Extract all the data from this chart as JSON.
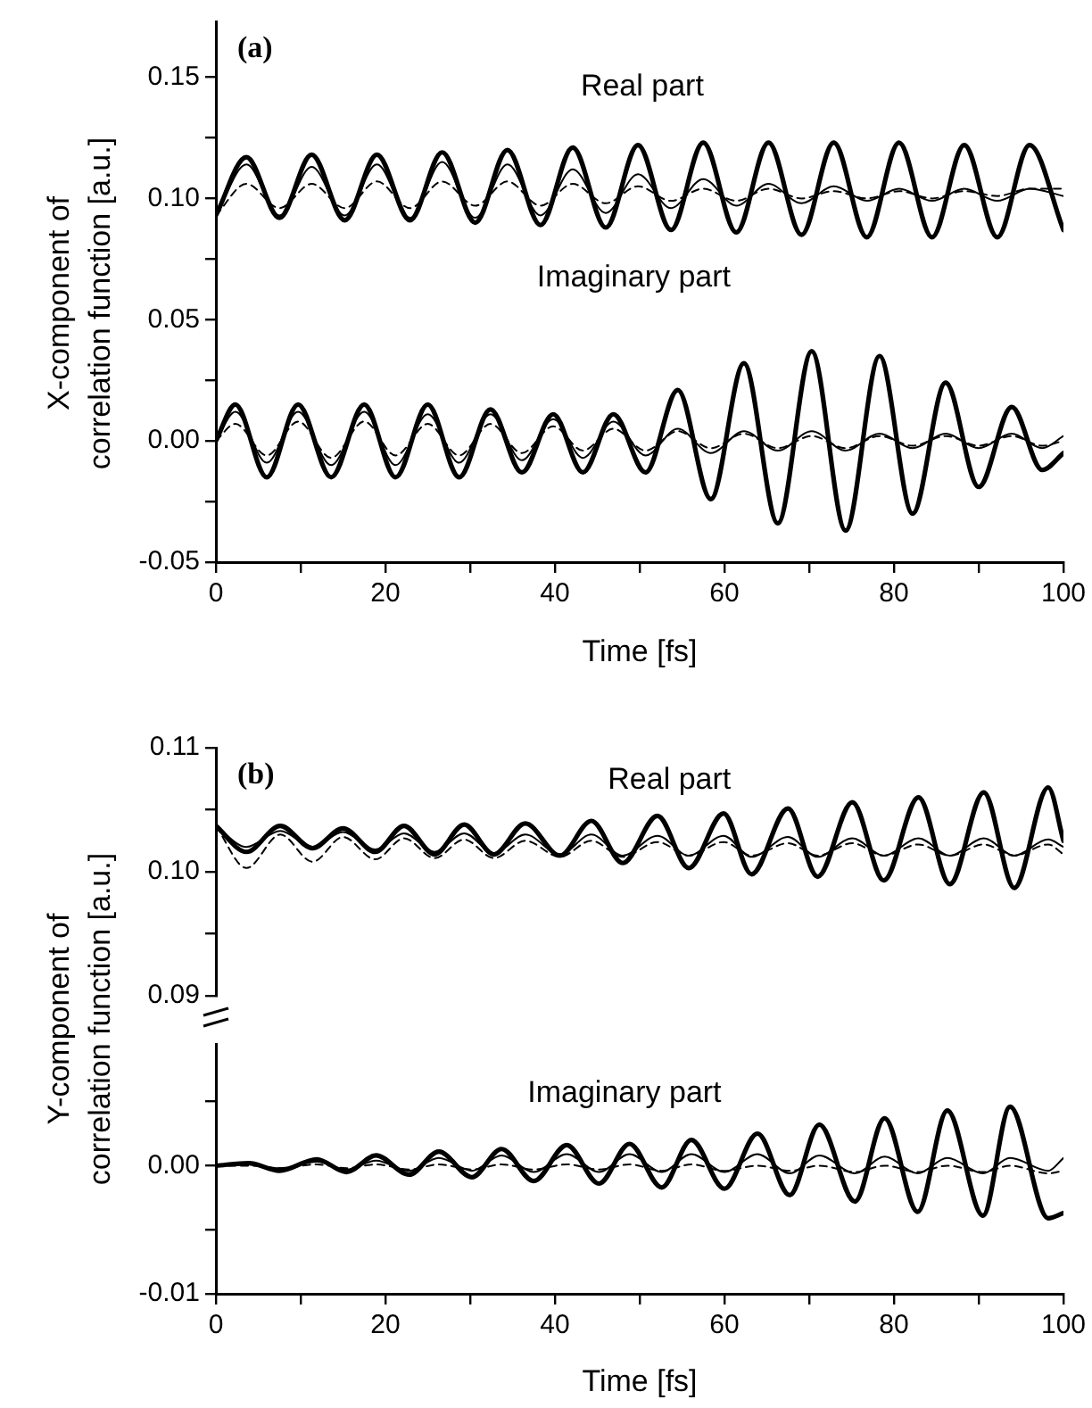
{
  "chart_data": [
    {
      "type": "line",
      "xlabel": "Time [fs]",
      "ylabel": "X-component of correlation function [a.u.]",
      "annotations": [
        "(a)",
        "Real part",
        "Imaginary part"
      ],
      "xlim": [
        0,
        100
      ],
      "ylim": [
        -0.05,
        0.173
      ],
      "xticks": [
        0,
        {
          "value": 10,
          "label": null
        },
        20,
        {
          "value": 30,
          "label": null
        },
        40,
        {
          "value": 50,
          "label": null
        },
        60,
        {
          "value": 70,
          "label": null
        },
        80,
        {
          "value": 90,
          "label": null
        },
        100
      ],
      "yticks": [
        {
          "value": -0.05,
          "label": "-0.05"
        },
        {
          "value": -0.025,
          "label": null
        },
        {
          "value": 0,
          "label": "0.00"
        },
        {
          "value": 0.025,
          "label": null
        },
        {
          "value": 0.05,
          "label": "0.05"
        },
        {
          "value": 0.075,
          "label": null
        },
        {
          "value": 0.1,
          "label": "0.10"
        },
        {
          "value": 0.125,
          "label": null
        },
        {
          "value": 0.15,
          "label": "0.15"
        }
      ],
      "series": [
        {
          "color": "#000000",
          "line_style": "solid",
          "x": [
            0,
            3.6,
            7.5,
            11.3,
            15.2,
            19,
            22.9,
            26.7,
            30.6,
            34.4,
            38.3,
            42.1,
            46,
            49.8,
            53.7,
            57.5,
            61.4,
            65.2,
            69.1,
            72.9,
            76.8,
            80.6,
            84.5,
            88.3,
            92.2,
            96,
            100
          ],
          "values": [
            0.093,
            0.117,
            0.092,
            0.118,
            0.091,
            0.118,
            0.091,
            0.119,
            0.09,
            0.12,
            0.089,
            0.121,
            0.088,
            0.122,
            0.087,
            0.123,
            0.086,
            0.123,
            0.085,
            0.123,
            0.084,
            0.123,
            0.084,
            0.122,
            0.084,
            0.122,
            0.087
          ]
        },
        {
          "color": "#000000",
          "line_style": "solid",
          "x": [
            0,
            3.6,
            7.5,
            11.3,
            15.2,
            19,
            22.9,
            26.7,
            30.6,
            34.4,
            38.3,
            42.1,
            46,
            49.8,
            53.7,
            57.5,
            61.4,
            65.2,
            69.1,
            72.9,
            76.8,
            80.6,
            84.5,
            88.3,
            92.2,
            96,
            100
          ],
          "values": [
            0.093,
            0.114,
            0.093,
            0.113,
            0.093,
            0.114,
            0.092,
            0.115,
            0.092,
            0.114,
            0.093,
            0.112,
            0.094,
            0.11,
            0.096,
            0.108,
            0.097,
            0.106,
            0.098,
            0.105,
            0.099,
            0.104,
            0.099,
            0.104,
            0.099,
            0.104,
            0.101
          ]
        },
        {
          "color": "#000000",
          "line_style": "dashed",
          "x": [
            0,
            3.6,
            7.5,
            11.3,
            15.2,
            19,
            22.9,
            26.7,
            30.6,
            34.4,
            38.3,
            42.1,
            46,
            49.8,
            53.7,
            57.5,
            61.4,
            65.2,
            69.1,
            72.9,
            76.8,
            80.6,
            84.5,
            88.3,
            92.2,
            96,
            100
          ],
          "values": [
            0.093,
            0.106,
            0.096,
            0.106,
            0.096,
            0.107,
            0.096,
            0.107,
            0.097,
            0.107,
            0.097,
            0.106,
            0.098,
            0.105,
            0.099,
            0.104,
            0.099,
            0.104,
            0.1,
            0.103,
            0.1,
            0.103,
            0.1,
            0.103,
            0.101,
            0.104,
            0.104
          ]
        },
        {
          "color": "#000000",
          "line_style": "solid",
          "x": [
            0,
            2.3,
            6,
            9.7,
            13.6,
            17.5,
            21.2,
            25,
            28.7,
            32.4,
            36.1,
            39.8,
            43.3,
            46.9,
            50.7,
            54.5,
            58.4,
            62.3,
            66.3,
            70.3,
            74.3,
            78.3,
            82.2,
            86.1,
            90,
            93.9,
            97.5,
            100
          ],
          "values": [
            0,
            0.015,
            -0.015,
            0.015,
            -0.015,
            0.015,
            -0.015,
            0.015,
            -0.015,
            0.013,
            -0.013,
            0.011,
            -0.013,
            0.011,
            -0.013,
            0.021,
            -0.024,
            0.032,
            -0.034,
            0.037,
            -0.037,
            0.035,
            -0.03,
            0.024,
            -0.019,
            0.014,
            -0.012,
            -0.005
          ]
        },
        {
          "color": "#000000",
          "line_style": "solid",
          "x": [
            0,
            2.3,
            6,
            9.7,
            13.6,
            17.5,
            21.2,
            25,
            28.7,
            32.4,
            36.1,
            39.8,
            43.3,
            46.9,
            50.7,
            54.5,
            58.4,
            62.3,
            66.3,
            70.3,
            74.3,
            78.3,
            82.2,
            86.1,
            90,
            93.9,
            97.5,
            100
          ],
          "values": [
            0,
            0.012,
            -0.009,
            0.012,
            -0.01,
            0.012,
            -0.01,
            0.011,
            -0.009,
            0.011,
            -0.008,
            0.009,
            -0.007,
            0.008,
            -0.006,
            0.005,
            -0.005,
            0.004,
            -0.004,
            0.004,
            -0.004,
            0.003,
            -0.003,
            0.003,
            -0.003,
            0.003,
            -0.003,
            0.002
          ]
        },
        {
          "color": "#000000",
          "line_style": "dashed",
          "x": [
            0,
            2.3,
            6,
            9.7,
            13.6,
            17.5,
            21.2,
            25,
            28.7,
            32.4,
            36.1,
            39.8,
            43.3,
            46.9,
            50.7,
            54.5,
            58.4,
            62.3,
            66.3,
            70.3,
            74.3,
            78.3,
            82.2,
            86.1,
            90,
            93.9,
            97.5,
            100
          ],
          "values": [
            0,
            0.007,
            -0.006,
            0.008,
            -0.007,
            0.008,
            -0.006,
            0.007,
            -0.006,
            0.007,
            -0.005,
            0.006,
            -0.004,
            0.005,
            -0.004,
            0.004,
            -0.003,
            0.003,
            -0.003,
            0.002,
            -0.003,
            0.002,
            -0.002,
            0.002,
            -0.002,
            0.002,
            -0.002,
            0
          ]
        }
      ]
    },
    {
      "type": "line",
      "ylabel": "Y-component of correlation function [a.u.]",
      "annotations": [
        "(b)",
        "Real part"
      ],
      "xlim": [
        0,
        100
      ],
      "ylim": [
        0.09,
        0.11
      ],
      "tick_labels": "y",
      "yticks": [
        {
          "value": 0.09,
          "label": "0.09"
        },
        {
          "value": 0.095,
          "label": null
        },
        {
          "value": 0.1,
          "label": "0.10"
        },
        {
          "value": 0.105,
          "label": null
        },
        {
          "value": 0.11,
          "label": "0.11"
        }
      ],
      "series": [
        {
          "color": "#000000",
          "line_style": "solid",
          "x": [
            0,
            3.6,
            7.6,
            11.4,
            15,
            18.8,
            22.2,
            25.8,
            29.3,
            32.8,
            36.5,
            40.6,
            44.3,
            48,
            52.1,
            55.8,
            59.9,
            63.2,
            67.5,
            71,
            75.1,
            78.8,
            82.9,
            86.6,
            90.6,
            94.2,
            98.2,
            100
          ],
          "values": [
            0.1037,
            0.1016,
            0.1037,
            0.1019,
            0.1035,
            0.1016,
            0.1037,
            0.1014,
            0.1038,
            0.1014,
            0.1039,
            0.1013,
            0.1041,
            0.1007,
            0.1045,
            0.1003,
            0.1047,
            0.0998,
            0.1051,
            0.0996,
            0.1056,
            0.0993,
            0.106,
            0.099,
            0.1064,
            0.0987,
            0.1068,
            0.1025
          ]
        },
        {
          "color": "#000000",
          "line_style": "solid",
          "x": [
            0,
            3.6,
            7.6,
            11.4,
            15,
            18.8,
            22.2,
            25.8,
            29.3,
            32.8,
            36.5,
            40.6,
            44.3,
            48,
            52.1,
            55.8,
            59.9,
            63.2,
            67.5,
            71,
            75.1,
            78.8,
            82.9,
            86.6,
            90.6,
            94.2,
            98.2,
            100
          ],
          "values": [
            0.1037,
            0.102,
            0.1033,
            0.102,
            0.1032,
            0.1018,
            0.1031,
            0.1016,
            0.1031,
            0.1015,
            0.103,
            0.1014,
            0.103,
            0.1013,
            0.1029,
            0.1013,
            0.1029,
            0.1012,
            0.1028,
            0.1012,
            0.1027,
            0.1013,
            0.1027,
            0.1013,
            0.1027,
            0.1013,
            0.1026,
            0.102
          ]
        },
        {
          "color": "#000000",
          "line_style": "dashed",
          "x": [
            0,
            3.6,
            7.6,
            11.4,
            15,
            18.8,
            22.2,
            25.8,
            29.3,
            32.8,
            36.5,
            40.6,
            44.3,
            48,
            52.1,
            55.8,
            59.9,
            63.2,
            67.5,
            71,
            75.1,
            78.8,
            82.9,
            86.6,
            90.6,
            94.2,
            98.2,
            100
          ],
          "values": [
            0.1037,
            0.1003,
            0.103,
            0.1008,
            0.1028,
            0.101,
            0.1027,
            0.1011,
            0.1026,
            0.1011,
            0.1025,
            0.1012,
            0.1025,
            0.1012,
            0.1024,
            0.1013,
            0.1024,
            0.1013,
            0.1023,
            0.1013,
            0.1023,
            0.1013,
            0.1022,
            0.1013,
            0.1022,
            0.1013,
            0.1022,
            0.1014
          ]
        }
      ]
    },
    {
      "type": "line",
      "xlabel": "Time [fs]",
      "annotations": [
        "Imaginary part"
      ],
      "xlim": [
        0,
        100
      ],
      "ylim": [
        -0.01,
        0.0095
      ],
      "xticks": [
        0,
        {
          "value": 10,
          "label": null
        },
        20,
        {
          "value": 30,
          "label": null
        },
        40,
        {
          "value": 50,
          "label": null
        },
        60,
        {
          "value": 70,
          "label": null
        },
        80,
        {
          "value": 90,
          "label": null
        },
        100
      ],
      "yticks": [
        {
          "value": -0.01,
          "label": "-0.01"
        },
        {
          "value": -0.005,
          "label": null
        },
        {
          "value": 0,
          "label": "0.00"
        },
        {
          "value": 0.005,
          "label": null
        }
      ],
      "series": [
        {
          "color": "#000000",
          "line_style": "solid",
          "x": [
            0,
            3.9,
            7.5,
            11.9,
            15.4,
            18.9,
            22.8,
            26.3,
            30.2,
            33.7,
            37.5,
            41.4,
            45.2,
            48.8,
            52.6,
            56.1,
            60,
            63.9,
            67.7,
            71.2,
            75.4,
            78.9,
            82.8,
            86.3,
            90.5,
            93.7,
            98.2,
            100
          ],
          "values": [
            0,
            0.0002,
            -0.0004,
            0.0005,
            -0.0005,
            0.0008,
            -0.0007,
            0.0011,
            -0.0009,
            0.0013,
            -0.0012,
            0.0016,
            -0.0014,
            0.0017,
            -0.0017,
            0.002,
            -0.0018,
            0.0025,
            -0.0023,
            0.0032,
            -0.0028,
            0.0037,
            -0.0036,
            0.0043,
            -0.0039,
            0.0046,
            -0.0041,
            -0.0037
          ]
        },
        {
          "color": "#000000",
          "line_style": "solid",
          "x": [
            0,
            3.9,
            7.5,
            11.9,
            15.4,
            18.9,
            22.8,
            26.3,
            30.2,
            33.7,
            37.5,
            41.4,
            45.2,
            48.8,
            52.6,
            56.1,
            60,
            63.9,
            67.7,
            71.2,
            75.4,
            78.9,
            82.8,
            86.3,
            90.5,
            93.7,
            98.2,
            100
          ],
          "values": [
            0,
            0.0001,
            -0.0002,
            0.0003,
            -0.0003,
            0.0004,
            -0.0004,
            0.0006,
            -0.0004,
            0.0008,
            -0.0005,
            0.0009,
            -0.0005,
            0.0009,
            -0.0005,
            0.0009,
            -0.0005,
            0.0009,
            -0.0006,
            0.0008,
            -0.0006,
            0.0007,
            -0.0006,
            0.0006,
            -0.0006,
            0.0006,
            -0.0004,
            0.0006
          ]
        },
        {
          "color": "#000000",
          "line_style": "dashed",
          "x": [
            0,
            3.9,
            7.5,
            11.9,
            15.4,
            18.9,
            22.8,
            26.3,
            30.2,
            33.7,
            37.5,
            41.4,
            45.2,
            48.8,
            52.6,
            56.1,
            60,
            63.9,
            67.7,
            71.2,
            75.4,
            78.9,
            82.8,
            86.3,
            90.5,
            93.7,
            98.2,
            100
          ],
          "values": [
            0,
            0,
            -0.0002,
            0.0001,
            -0.0002,
            0.0001,
            -0.0003,
            0.0001,
            -0.0003,
            0.0001,
            -0.0003,
            0.0001,
            -0.0003,
            0.0001,
            -0.0004,
            0.0001,
            -0.0004,
            0,
            -0.0004,
            0,
            -0.0005,
            0,
            -0.0005,
            0,
            -0.0005,
            0,
            -0.0006,
            -0.0004
          ]
        }
      ]
    }
  ]
}
